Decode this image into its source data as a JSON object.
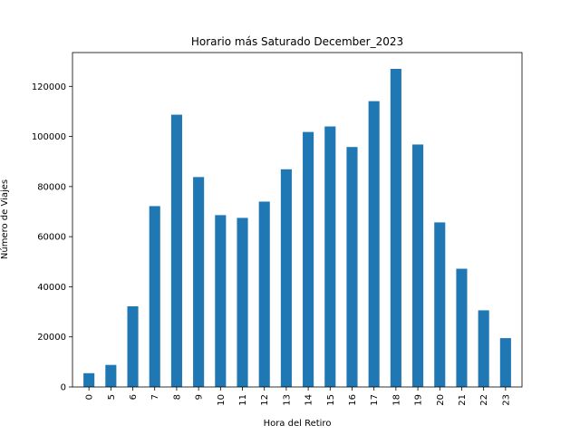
{
  "chart_data": {
    "type": "bar",
    "title": "Horario más Saturado December_2023",
    "xlabel": "Hora del Retiro",
    "ylabel": "Número de Viajes",
    "categories": [
      "0",
      "5",
      "6",
      "7",
      "8",
      "9",
      "10",
      "11",
      "12",
      "13",
      "14",
      "15",
      "16",
      "17",
      "18",
      "19",
      "20",
      "21",
      "22",
      "23"
    ],
    "values": [
      5500,
      8800,
      32200,
      72200,
      108700,
      83800,
      68600,
      67500,
      74000,
      86900,
      101800,
      104000,
      95800,
      114100,
      127000,
      96800,
      65700,
      47200,
      30600,
      19500
    ],
    "ylim": [
      0,
      133500
    ],
    "yticks": [
      0,
      20000,
      40000,
      60000,
      80000,
      100000,
      120000
    ],
    "ytick_labels": [
      "0",
      "20000",
      "40000",
      "60000",
      "80000",
      "100000",
      "120000"
    ],
    "color": "#1f77b4",
    "grid": false,
    "legend": "none"
  }
}
